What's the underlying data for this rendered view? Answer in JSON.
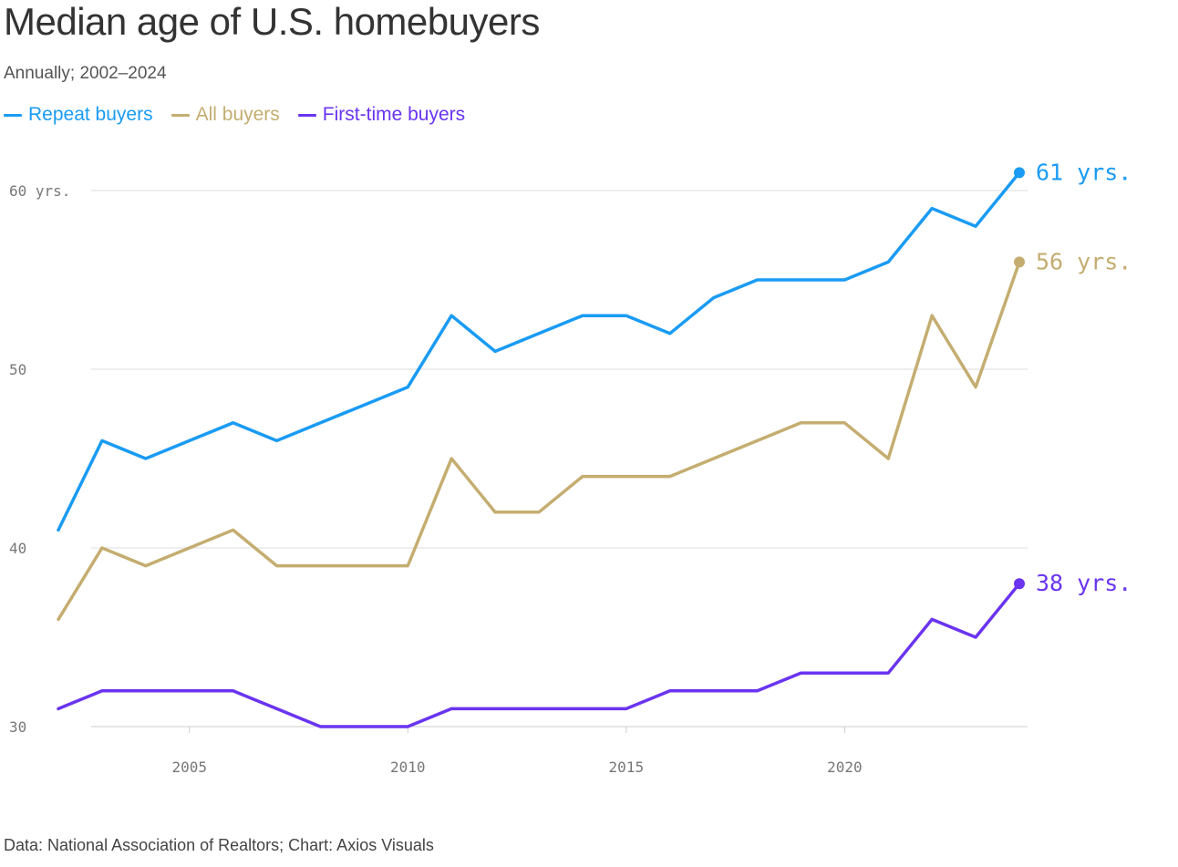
{
  "header": {
    "title": "Median age of U.S. homebuyers",
    "subtitle": "Annually; 2002–2024"
  },
  "footer": {
    "source": "Data: National Association of Realtors; Chart: Axios Visuals"
  },
  "chart_data": {
    "type": "line",
    "title": "Median age of U.S. homebuyers",
    "subtitle": "Annually; 2002–2024",
    "x": [
      2002,
      2003,
      2004,
      2005,
      2006,
      2007,
      2008,
      2009,
      2010,
      2011,
      2012,
      2013,
      2014,
      2015,
      2016,
      2017,
      2018,
      2019,
      2020,
      2021,
      2022,
      2023,
      2024
    ],
    "series": [
      {
        "name": "Repeat buyers",
        "color": "#1a9bf4",
        "end_label": "61 yrs.",
        "values": [
          41,
          46,
          45,
          46,
          47,
          46,
          47,
          48,
          49,
          53,
          51,
          52,
          53,
          53,
          52,
          54,
          55,
          55,
          55,
          56,
          59,
          58,
          61
        ]
      },
      {
        "name": "All buyers",
        "color": "#c4ad70",
        "end_label": "56 yrs.",
        "values": [
          36,
          40,
          39,
          40,
          41,
          39,
          39,
          39,
          39,
          45,
          42,
          42,
          44,
          44,
          44,
          45,
          46,
          47,
          47,
          45,
          53,
          49,
          56
        ]
      },
      {
        "name": "First-time buyers",
        "color": "#6a34f0",
        "end_label": "38 yrs.",
        "values": [
          31,
          32,
          32,
          32,
          32,
          31,
          30,
          30,
          30,
          31,
          31,
          31,
          31,
          31,
          32,
          32,
          32,
          33,
          33,
          33,
          36,
          35,
          38
        ]
      }
    ],
    "xlim": [
      2002,
      2024
    ],
    "ylim": [
      30,
      60
    ],
    "x_ticks": [
      {
        "value": 2005,
        "label": "2005"
      },
      {
        "value": 2010,
        "label": "2010"
      },
      {
        "value": 2015,
        "label": "2015"
      },
      {
        "value": 2020,
        "label": "2020"
      }
    ],
    "y_ticks": [
      {
        "value": 30,
        "label": "30"
      },
      {
        "value": 40,
        "label": "40"
      },
      {
        "value": 50,
        "label": "50"
      },
      {
        "value": 60,
        "label": "60 yrs."
      }
    ],
    "grid": true,
    "legend": "top-left"
  }
}
